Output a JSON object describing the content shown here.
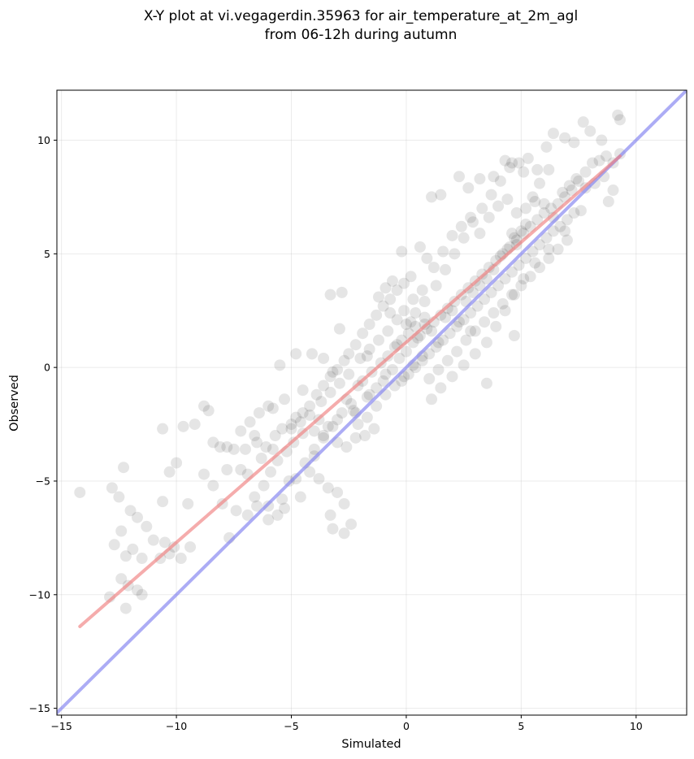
{
  "chart_data": {
    "type": "scatter",
    "title_lines": [
      "X-Y plot at vi.vegagerdin.35963 for air_temperature_at_2m_agl",
      "from 06-12h during autumn"
    ],
    "xlabel": "Simulated",
    "ylabel": "Observed",
    "xlim": [
      -15.2,
      12.2
    ],
    "ylim": [
      -15.3,
      12.2
    ],
    "xticks": [
      -15,
      -10,
      -5,
      0,
      5,
      10
    ],
    "yticks": [
      -15,
      -10,
      -5,
      0,
      5,
      10
    ],
    "xtick_labels": [
      "−15",
      "−10",
      "−5",
      "0",
      "5",
      "10"
    ],
    "ytick_labels": [
      "−15",
      "−10",
      "−5",
      "0",
      "5",
      "10"
    ],
    "grid": true,
    "point_color": "#000000",
    "point_opacity": 0.1,
    "points": [
      [
        -14.2,
        -5.5
      ],
      [
        -12.8,
        -5.3
      ],
      [
        -12.3,
        -4.4
      ],
      [
        -12.5,
        -5.7
      ],
      [
        -12.0,
        -6.3
      ],
      [
        -11.7,
        -6.6
      ],
      [
        -11.3,
        -7.0
      ],
      [
        -12.4,
        -7.2
      ],
      [
        -12.7,
        -7.8
      ],
      [
        -11.9,
        -8.0
      ],
      [
        -11.5,
        -8.4
      ],
      [
        -12.2,
        -8.3
      ],
      [
        -11.0,
        -7.6
      ],
      [
        -10.5,
        -7.7
      ],
      [
        -10.1,
        -7.9
      ],
      [
        -10.3,
        -8.2
      ],
      [
        -9.8,
        -8.4
      ],
      [
        -10.7,
        -8.4
      ],
      [
        -12.4,
        -9.3
      ],
      [
        -12.1,
        -9.6
      ],
      [
        -11.7,
        -9.8
      ],
      [
        -12.9,
        -10.1
      ],
      [
        -12.2,
        -10.6
      ],
      [
        -11.5,
        -10.0
      ],
      [
        -10.6,
        -2.7
      ],
      [
        -10.3,
        -4.6
      ],
      [
        -10.0,
        -4.2
      ],
      [
        -9.5,
        -6.0
      ],
      [
        -10.6,
        -5.9
      ],
      [
        -9.4,
        -7.9
      ],
      [
        -9.7,
        -2.6
      ],
      [
        -9.2,
        -2.5
      ],
      [
        -8.8,
        -1.7
      ],
      [
        -8.6,
        -1.9
      ],
      [
        -8.4,
        -3.3
      ],
      [
        -8.1,
        -3.5
      ],
      [
        -7.8,
        -3.5
      ],
      [
        -7.5,
        -3.6
      ],
      [
        -8.8,
        -4.7
      ],
      [
        -8.4,
        -5.2
      ],
      [
        -7.8,
        -4.5
      ],
      [
        -7.2,
        -4.5
      ],
      [
        -6.9,
        -4.7
      ],
      [
        -8.0,
        -6.0
      ],
      [
        -7.4,
        -6.3
      ],
      [
        -6.9,
        -6.5
      ],
      [
        -6.5,
        -6.1
      ],
      [
        -6.0,
        -6.1
      ],
      [
        -5.6,
        -6.5
      ],
      [
        -5.3,
        -6.2
      ],
      [
        -7.7,
        -7.5
      ],
      [
        -6.5,
        -3.3
      ],
      [
        -6.1,
        -3.5
      ],
      [
        -5.7,
        -3.0
      ],
      [
        -5.4,
        -2.7
      ],
      [
        -5.0,
        -2.5
      ],
      [
        -4.8,
        -2.2
      ],
      [
        -4.5,
        -2.0
      ],
      [
        -4.2,
        -1.7
      ],
      [
        -3.9,
        -1.2
      ],
      [
        -3.6,
        -0.8
      ],
      [
        -3.3,
        -0.4
      ],
      [
        -3.0,
        -0.1
      ],
      [
        -2.7,
        0.3
      ],
      [
        -2.5,
        0.6
      ],
      [
        -2.2,
        1.0
      ],
      [
        -1.9,
        1.5
      ],
      [
        -1.6,
        1.9
      ],
      [
        -1.3,
        2.3
      ],
      [
        -1.0,
        2.7
      ],
      [
        -0.7,
        3.0
      ],
      [
        -0.4,
        3.4
      ],
      [
        -0.1,
        3.7
      ],
      [
        0.2,
        4.0
      ],
      [
        -4.8,
        0.6
      ],
      [
        -5.5,
        0.1
      ],
      [
        -4.1,
        0.6
      ],
      [
        -3.6,
        0.4
      ],
      [
        -3.2,
        -0.2
      ],
      [
        -3.3,
        3.2
      ],
      [
        -2.8,
        3.3
      ],
      [
        -2.9,
        1.7
      ],
      [
        -1.7,
        0.5
      ],
      [
        -1.2,
        3.1
      ],
      [
        -0.7,
        2.4
      ],
      [
        -5.8,
        -1.8
      ],
      [
        -5.3,
        -1.4
      ],
      [
        -4.5,
        -1.0
      ],
      [
        -4.0,
        -2.8
      ],
      [
        -3.6,
        -3.1
      ],
      [
        -3.0,
        -3.3
      ],
      [
        -2.6,
        -3.5
      ],
      [
        -2.2,
        -3.1
      ],
      [
        -1.8,
        -3.0
      ],
      [
        -1.4,
        -2.7
      ],
      [
        -4.2,
        -4.6
      ],
      [
        -3.8,
        -4.9
      ],
      [
        -3.4,
        -5.3
      ],
      [
        -3.0,
        -5.5
      ],
      [
        -2.7,
        -6.0
      ],
      [
        -3.3,
        -6.5
      ],
      [
        -2.7,
        -7.3
      ],
      [
        -2.4,
        -6.9
      ],
      [
        -3.2,
        -7.1
      ],
      [
        -4.6,
        -5.7
      ],
      [
        -5.1,
        -5.0
      ],
      [
        -4.0,
        -3.9
      ],
      [
        -2.2,
        -2.0
      ],
      [
        -1.6,
        -1.2
      ],
      [
        -1.0,
        -0.6
      ],
      [
        -0.6,
        -0.1
      ],
      [
        -0.3,
        0.4
      ],
      [
        0.0,
        0.7
      ],
      [
        0.3,
        1.1
      ],
      [
        0.6,
        1.4
      ],
      [
        0.9,
        1.7
      ],
      [
        1.2,
        2.0
      ],
      [
        1.5,
        2.3
      ],
      [
        1.8,
        2.6
      ],
      [
        2.1,
        2.9
      ],
      [
        2.4,
        3.2
      ],
      [
        2.7,
        3.5
      ],
      [
        3.0,
        3.8
      ],
      [
        3.3,
        4.1
      ],
      [
        3.6,
        4.4
      ],
      [
        3.9,
        4.7
      ],
      [
        4.2,
        5.0
      ],
      [
        4.5,
        5.3
      ],
      [
        4.8,
        5.6
      ],
      [
        5.1,
        5.9
      ],
      [
        5.4,
        6.2
      ],
      [
        5.7,
        6.5
      ],
      [
        6.0,
        6.8
      ],
      [
        6.3,
        7.0
      ],
      [
        6.6,
        7.2
      ],
      [
        6.9,
        7.5
      ],
      [
        7.2,
        7.8
      ],
      [
        7.5,
        8.2
      ],
      [
        7.8,
        8.6
      ],
      [
        8.1,
        9.0
      ],
      [
        8.4,
        9.1
      ],
      [
        8.7,
        9.3
      ],
      [
        9.0,
        9.0
      ],
      [
        9.3,
        9.4
      ],
      [
        -0.2,
        -0.6
      ],
      [
        0.1,
        -0.3
      ],
      [
        0.4,
        0.0
      ],
      [
        0.7,
        0.3
      ],
      [
        1.0,
        0.6
      ],
      [
        1.3,
        0.9
      ],
      [
        1.6,
        1.2
      ],
      [
        1.9,
        1.5
      ],
      [
        2.2,
        1.8
      ],
      [
        2.5,
        2.1
      ],
      [
        2.8,
        2.4
      ],
      [
        3.1,
        2.7
      ],
      [
        3.4,
        3.0
      ],
      [
        3.7,
        3.3
      ],
      [
        4.0,
        3.6
      ],
      [
        4.3,
        3.9
      ],
      [
        4.6,
        4.2
      ],
      [
        4.9,
        4.5
      ],
      [
        5.2,
        4.8
      ],
      [
        5.5,
        5.1
      ],
      [
        5.8,
        5.4
      ],
      [
        6.1,
        5.7
      ],
      [
        6.4,
        6.0
      ],
      [
        6.7,
        6.2
      ],
      [
        7.0,
        6.5
      ],
      [
        7.3,
        6.8
      ],
      [
        0.8,
        2.9
      ],
      [
        1.3,
        3.6
      ],
      [
        1.7,
        4.3
      ],
      [
        2.1,
        5.0
      ],
      [
        2.5,
        5.7
      ],
      [
        2.9,
        6.4
      ],
      [
        3.3,
        7.0
      ],
      [
        3.7,
        7.6
      ],
      [
        4.1,
        8.2
      ],
      [
        4.5,
        8.8
      ],
      [
        4.9,
        9.0
      ],
      [
        5.3,
        9.2
      ],
      [
        5.7,
        8.7
      ],
      [
        6.1,
        9.7
      ],
      [
        6.4,
        10.3
      ],
      [
        6.9,
        10.1
      ],
      [
        7.3,
        9.9
      ],
      [
        7.7,
        10.8
      ],
      [
        8.0,
        10.4
      ],
      [
        8.5,
        10.0
      ],
      [
        9.2,
        11.1
      ],
      [
        9.3,
        10.9
      ],
      [
        9.0,
        7.8
      ],
      [
        8.8,
        7.3
      ],
      [
        7.6,
        6.9
      ],
      [
        6.9,
        6.0
      ],
      [
        6.2,
        5.2
      ],
      [
        5.6,
        4.6
      ],
      [
        5.1,
        3.9
      ],
      [
        4.7,
        3.2
      ],
      [
        4.3,
        2.5
      ],
      [
        3.9,
        1.8
      ],
      [
        3.5,
        1.1
      ],
      [
        3.0,
        0.6
      ],
      [
        2.5,
        0.1
      ],
      [
        2.0,
        -0.4
      ],
      [
        1.5,
        -0.9
      ],
      [
        1.1,
        -1.4
      ],
      [
        3.5,
        -0.7
      ],
      [
        4.7,
        1.4
      ],
      [
        2.8,
        1.6
      ],
      [
        0.9,
        4.8
      ],
      [
        0.6,
        5.3
      ],
      [
        -0.2,
        5.1
      ],
      [
        1.1,
        7.5
      ],
      [
        1.5,
        7.6
      ],
      [
        2.3,
        8.4
      ],
      [
        2.7,
        7.9
      ],
      [
        3.2,
        8.3
      ],
      [
        3.8,
        8.4
      ],
      [
        4.3,
        9.1
      ],
      [
        4.6,
        9.0
      ],
      [
        5.1,
        8.6
      ],
      [
        5.5,
        7.5
      ],
      [
        5.8,
        8.1
      ],
      [
        6.2,
        8.7
      ],
      [
        -0.4,
        2.1
      ],
      [
        -0.1,
        2.5
      ],
      [
        0.2,
        2.0
      ],
      [
        0.5,
        1.3
      ],
      [
        0.8,
        1.9
      ],
      [
        1.1,
        1.6
      ],
      [
        1.4,
        1.1
      ],
      [
        1.7,
        2.2
      ],
      [
        2.0,
        2.5
      ],
      [
        2.3,
        2.0
      ],
      [
        2.6,
        2.9
      ],
      [
        2.9,
        3.3
      ],
      [
        3.2,
        3.6
      ],
      [
        3.5,
        3.9
      ],
      [
        3.8,
        4.3
      ],
      [
        4.1,
        4.9
      ],
      [
        4.4,
        5.2
      ],
      [
        4.7,
        5.7
      ],
      [
        5.0,
        6.0
      ],
      [
        4.8,
        5.4
      ],
      [
        5.2,
        6.3
      ],
      [
        4.6,
        5.9
      ],
      [
        -1.9,
        -0.6
      ],
      [
        -1.5,
        -0.2
      ],
      [
        -1.1,
        0.2
      ],
      [
        -0.8,
        0.5
      ],
      [
        -0.5,
        0.9
      ],
      [
        -0.2,
        1.2
      ],
      [
        0.1,
        1.5
      ],
      [
        0.4,
        1.8
      ],
      [
        -2.6,
        -1.4
      ],
      [
        -2.3,
        -1.9
      ],
      [
        -3.0,
        -2.3
      ],
      [
        -3.4,
        -2.6
      ],
      [
        -3.8,
        -2.3
      ],
      [
        -4.2,
        -2.1
      ],
      [
        -4.6,
        -2.4
      ],
      [
        -5.0,
        -2.7
      ],
      [
        -2.1,
        -2.5
      ],
      [
        -1.7,
        -2.2
      ],
      [
        -1.3,
        -1.7
      ],
      [
        -0.9,
        -1.2
      ],
      [
        -0.5,
        -0.8
      ],
      [
        -0.1,
        -0.4
      ],
      [
        0.3,
        0.1
      ],
      [
        0.7,
        0.5
      ],
      [
        -6.2,
        -5.2
      ],
      [
        -6.6,
        -5.7
      ],
      [
        -5.9,
        -4.6
      ],
      [
        -5.6,
        -4.1
      ],
      [
        -5.2,
        -3.7
      ],
      [
        -4.9,
        -3.3
      ],
      [
        -4.5,
        -2.9
      ],
      [
        -6.0,
        -6.7
      ],
      [
        -5.4,
        -5.8
      ],
      [
        -4.8,
        -4.9
      ],
      [
        -4.4,
        -4.2
      ],
      [
        -4.0,
        -3.6
      ],
      [
        -3.6,
        -3.0
      ],
      [
        -3.2,
        -2.6
      ],
      [
        -2.8,
        -2.0
      ],
      [
        -2.4,
        -1.6
      ],
      [
        1.0,
        -0.5
      ],
      [
        1.4,
        -0.1
      ],
      [
        1.8,
        0.3
      ],
      [
        2.2,
        0.7
      ],
      [
        2.6,
        1.2
      ],
      [
        3.0,
        1.6
      ],
      [
        3.4,
        2.0
      ],
      [
        3.8,
        2.4
      ],
      [
        4.2,
        2.8
      ],
      [
        4.6,
        3.2
      ],
      [
        5.0,
        3.6
      ],
      [
        5.4,
        4.0
      ],
      [
        5.8,
        4.4
      ],
      [
        6.2,
        4.8
      ],
      [
        6.6,
        5.2
      ],
      [
        7.0,
        5.6
      ],
      [
        -0.9,
        3.5
      ],
      [
        -0.6,
        3.8
      ],
      [
        0.3,
        3.0
      ],
      [
        0.7,
        3.4
      ],
      [
        1.2,
        4.4
      ],
      [
        1.6,
        5.1
      ],
      [
        2.0,
        5.8
      ],
      [
        2.4,
        6.2
      ],
      [
        2.8,
        6.6
      ],
      [
        3.2,
        5.9
      ],
      [
        3.6,
        6.6
      ],
      [
        4.0,
        7.1
      ],
      [
        4.4,
        7.4
      ],
      [
        4.8,
        6.8
      ],
      [
        5.2,
        7.0
      ],
      [
        5.6,
        7.3
      ],
      [
        6.0,
        7.2
      ],
      [
        6.4,
        6.6
      ],
      [
        6.8,
        7.7
      ],
      [
        7.1,
        8.0
      ],
      [
        7.4,
        8.3
      ],
      [
        7.8,
        7.9
      ],
      [
        8.2,
        8.1
      ],
      [
        8.6,
        8.4
      ],
      [
        -2.0,
        0.4
      ],
      [
        -1.6,
        0.8
      ],
      [
        -1.2,
        1.2
      ],
      [
        -0.8,
        1.6
      ],
      [
        -0.4,
        1.0
      ],
      [
        0.0,
        1.9
      ],
      [
        0.4,
        2.4
      ],
      [
        0.8,
        2.2
      ],
      [
        -3.7,
        -1.5
      ],
      [
        -3.3,
        -1.1
      ],
      [
        -2.9,
        -0.7
      ],
      [
        -2.5,
        -0.3
      ],
      [
        -2.1,
        -0.8
      ],
      [
        -1.7,
        -1.3
      ],
      [
        -1.3,
        -0.9
      ],
      [
        -0.9,
        -0.3
      ],
      [
        -7.2,
        -2.8
      ],
      [
        -6.8,
        -2.4
      ],
      [
        -6.4,
        -2.0
      ],
      [
        -6.0,
        -1.7
      ],
      [
        -6.6,
        -3.0
      ],
      [
        -7.0,
        -3.6
      ],
      [
        -6.3,
        -4.0
      ],
      [
        -5.8,
        -3.6
      ]
    ],
    "fit_line": {
      "color": "#f08080",
      "x": [
        -14.2,
        9.3
      ],
      "y": [
        -11.4,
        9.3
      ]
    },
    "identity_line": {
      "color": "#8080f0",
      "x": [
        -15.3,
        12.3
      ],
      "y": [
        -15.3,
        12.3
      ]
    }
  }
}
